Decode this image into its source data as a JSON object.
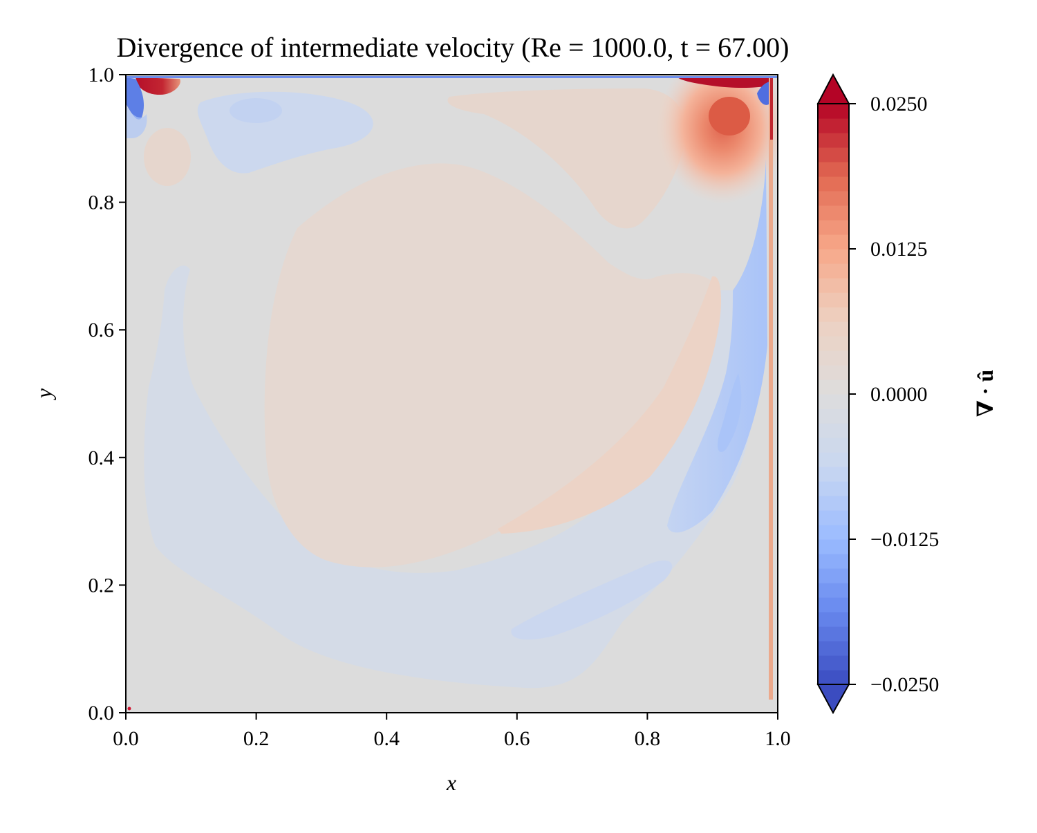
{
  "chart_data": {
    "type": "heatmap",
    "subtype": "filled-contour",
    "title": "Divergence of intermediate velocity (Re = 1000.0, t = 67.00)",
    "xlabel": "x",
    "ylabel": "y",
    "xlim": [
      0.0,
      1.0
    ],
    "ylim": [
      0.0,
      1.0
    ],
    "xticks": [
      "0.0",
      "0.2",
      "0.4",
      "0.6",
      "0.8",
      "1.0"
    ],
    "yticks": [
      "0.0",
      "0.2",
      "0.4",
      "0.6",
      "0.8",
      "1.0"
    ],
    "grid": false,
    "colorbar": {
      "label": "∇ · û",
      "colormap": "coolwarm",
      "range": [
        -0.025,
        0.025
      ],
      "extend": "both",
      "levels": 40,
      "ticks": [
        "0.0250",
        "0.0125",
        "0.0000",
        "−0.0125",
        "−0.0250"
      ],
      "colors": [
        "#3b4cc0",
        "#6788ee",
        "#9abbff",
        "#c9d7f0",
        "#dddddd",
        "#edd1c2",
        "#f7a889",
        "#e26952",
        "#b40426"
      ]
    },
    "regions": [
      {
        "name": "central positive core",
        "x": 0.5,
        "y": 0.55,
        "value": 0.002
      },
      {
        "name": "right diagonal positive band",
        "x": 0.85,
        "y": 0.5,
        "value": 0.004
      },
      {
        "name": "top-right corner peak",
        "x": 0.92,
        "y": 0.93,
        "value": 0.016
      },
      {
        "name": "top-left corner peak",
        "x": 0.04,
        "y": 0.99,
        "value": 0.025
      },
      {
        "name": "top-right lid edge",
        "x": 0.96,
        "y": 0.99,
        "value": 0.025
      },
      {
        "name": "upper-left positive blob",
        "x": 0.065,
        "y": 0.875,
        "value": 0.003
      },
      {
        "name": "upper-left negative eddy",
        "x": 0.2,
        "y": 0.94,
        "value": -0.003
      },
      {
        "name": "lower negative ring",
        "x": 0.45,
        "y": 0.15,
        "value": -0.0025
      },
      {
        "name": "right negative band",
        "x": 0.95,
        "y": 0.45,
        "value": -0.008
      },
      {
        "name": "top-left corner trough",
        "x": 0.02,
        "y": 0.96,
        "value": -0.02
      },
      {
        "name": "top-right corner trough",
        "x": 0.98,
        "y": 0.97,
        "value": -0.02
      }
    ]
  }
}
